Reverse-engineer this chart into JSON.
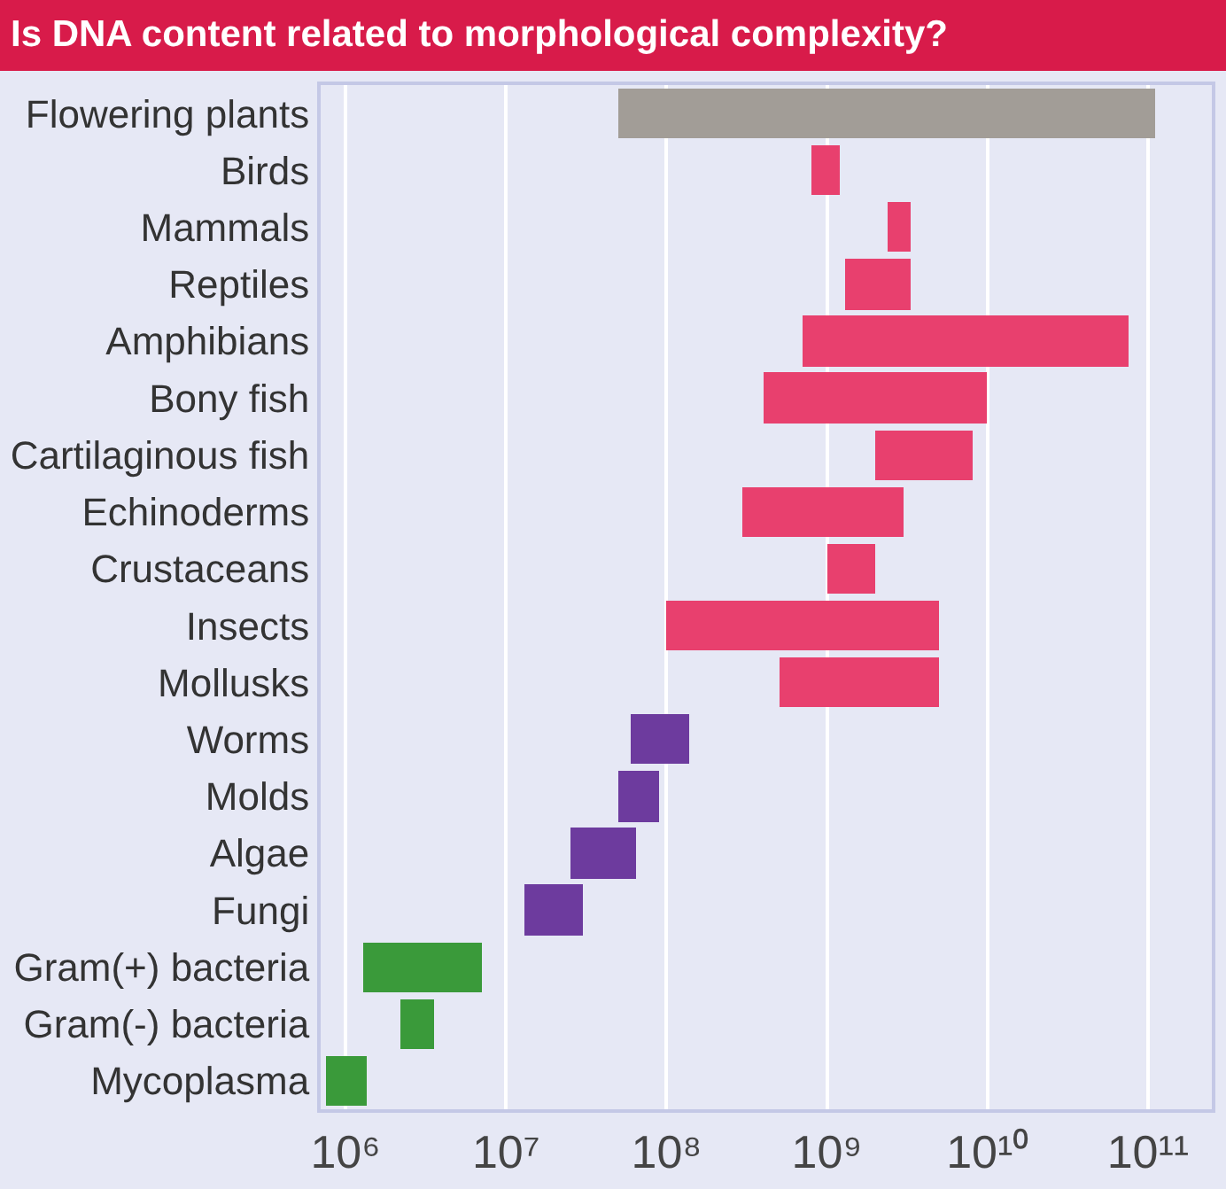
{
  "chart_data": {
    "type": "bar",
    "orientation": "horizontal",
    "title": "Is DNA content related to morphological complexity?",
    "categories": [
      "Flowering plants",
      "Birds",
      "Mammals",
      "Reptiles",
      "Amphibians",
      "Bony fish",
      "Cartilaginous fish",
      "Echinoderms",
      "Crustaceans",
      "Insects",
      "Mollusks",
      "Worms",
      "Molds",
      "Algae",
      "Fungi",
      "Gram(+) bacteria",
      "Gram(-) bacteria",
      "Mycoplasma"
    ],
    "base": [
      50000000,
      800000000,
      2400000000,
      1300000000,
      700000000,
      400000000,
      2000000000,
      300000000,
      1000000000,
      100000000,
      500000000,
      60000000,
      50000000,
      25000000,
      13000000,
      1300000,
      2200000,
      750000
    ],
    "values": [
      109950000000,
      400000000,
      900000000,
      2000000000,
      74300000000,
      9600000000,
      6000000000,
      2700000000,
      1000000000,
      4900000000,
      4500000000,
      80000000,
      40000000,
      40000000,
      17000000,
      5700000,
      1400000,
      600000
    ],
    "colors": [
      "#a29d97",
      "#e8406e",
      "#e8406e",
      "#e8406e",
      "#e8406e",
      "#e8406e",
      "#e8406e",
      "#e8406e",
      "#e8406e",
      "#e8406e",
      "#e8406e",
      "#6d3b9e",
      "#6d3b9e",
      "#6d3b9e",
      "#6d3b9e",
      "#3a9a3a",
      "#3a9a3a",
      "#3a9a3a"
    ],
    "log": "x",
    "xlim": [
      700000,
      250000000000
    ],
    "xticks": [
      {
        "value": 1000000,
        "label": "10⁶"
      },
      {
        "value": 10000000,
        "label": "10⁷"
      },
      {
        "value": 100000000,
        "label": "10⁸"
      },
      {
        "value": 1000000000,
        "label": "10⁹"
      },
      {
        "value": 10000000000,
        "label": "10¹⁰"
      },
      {
        "value": 100000000000,
        "label": "10¹¹"
      }
    ],
    "grid": "x"
  }
}
